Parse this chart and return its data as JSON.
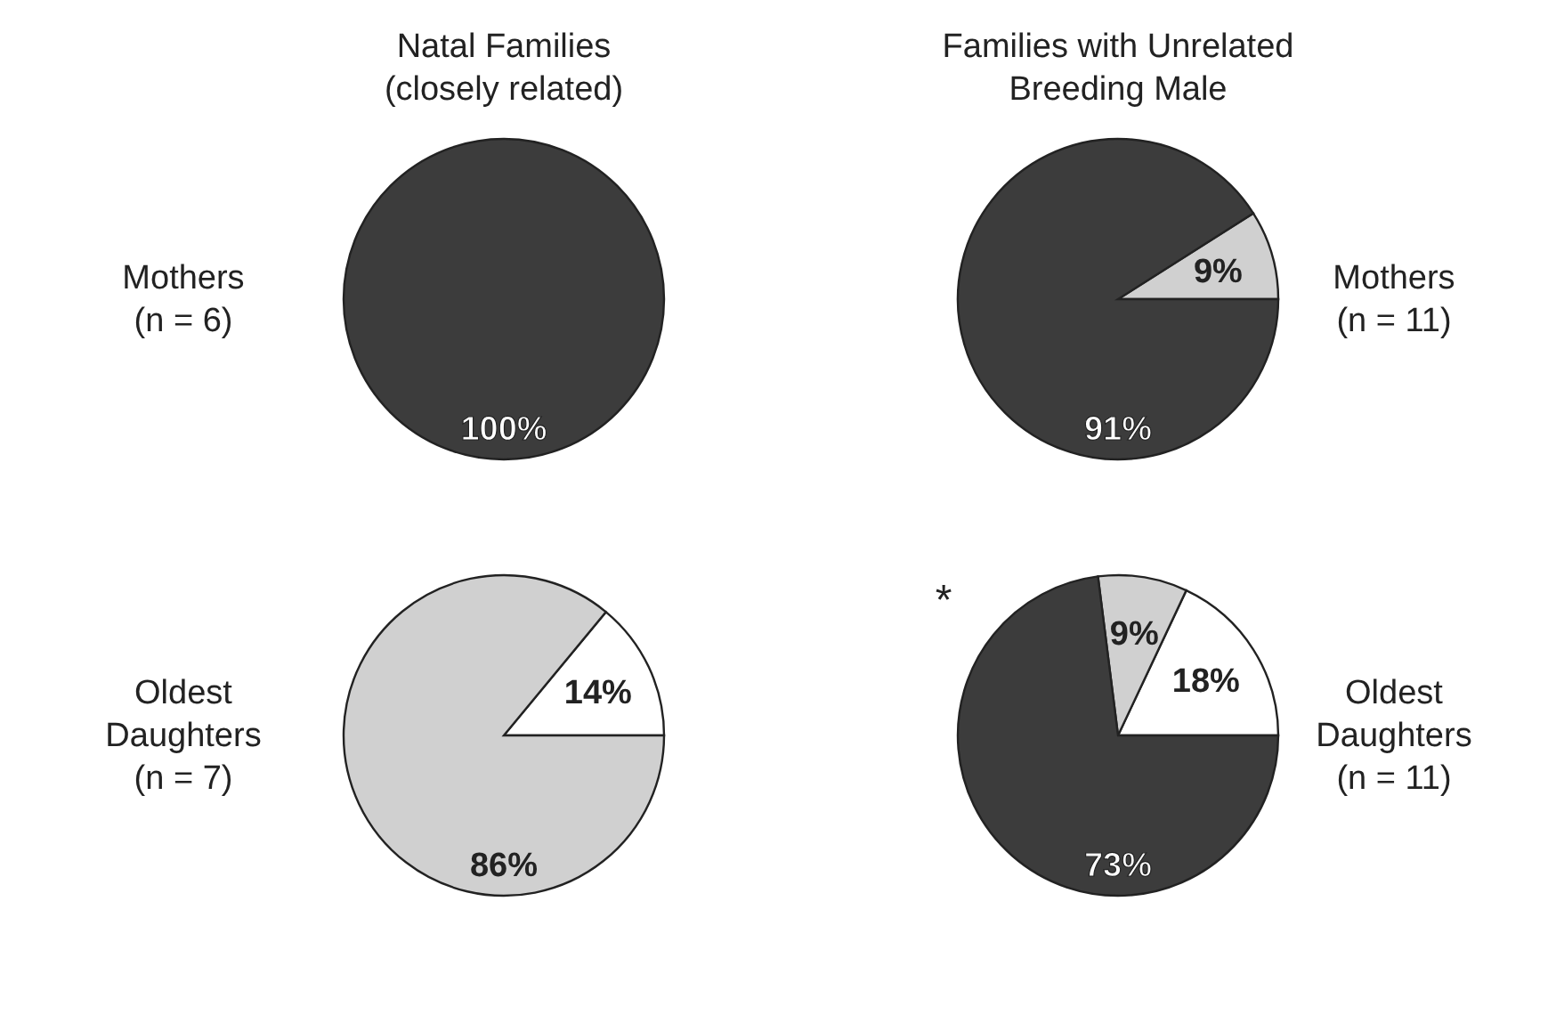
{
  "chart_data": [
    {
      "type": "pie",
      "title": "Natal Families",
      "subtitle": "(closely related)",
      "ylabel": "Mothers (n = 6)",
      "categories": [
        null
      ],
      "values": [
        100
      ],
      "colors": [
        "#3c3c3c"
      ],
      "value_labels": [
        "100%"
      ]
    },
    {
      "type": "pie",
      "title": "Families with Unrelated Breeding Male",
      "ylabel": "Mothers (n = 11)",
      "categories": [
        null,
        null
      ],
      "values": [
        9,
        91
      ],
      "colors": [
        "#d0d0d0",
        "#3c3c3c"
      ],
      "value_labels": [
        "9%",
        "91%"
      ]
    },
    {
      "type": "pie",
      "ylabel": "Oldest Daughters (n = 7)",
      "categories": [
        null,
        null
      ],
      "values": [
        14,
        86
      ],
      "colors": [
        "#ffffff",
        "#d0d0d0"
      ],
      "value_labels": [
        "14%",
        "86%"
      ]
    },
    {
      "type": "pie",
      "ylabel": "Oldest Daughters (n = 11)",
      "categories": [
        null,
        null,
        null
      ],
      "values": [
        18,
        9,
        73
      ],
      "colors": [
        "#ffffff",
        "#d0d0d0",
        "#3c3c3c"
      ],
      "value_labels": [
        "18%",
        "9%",
        "73%"
      ],
      "annotations": [
        "*"
      ]
    }
  ]
}
